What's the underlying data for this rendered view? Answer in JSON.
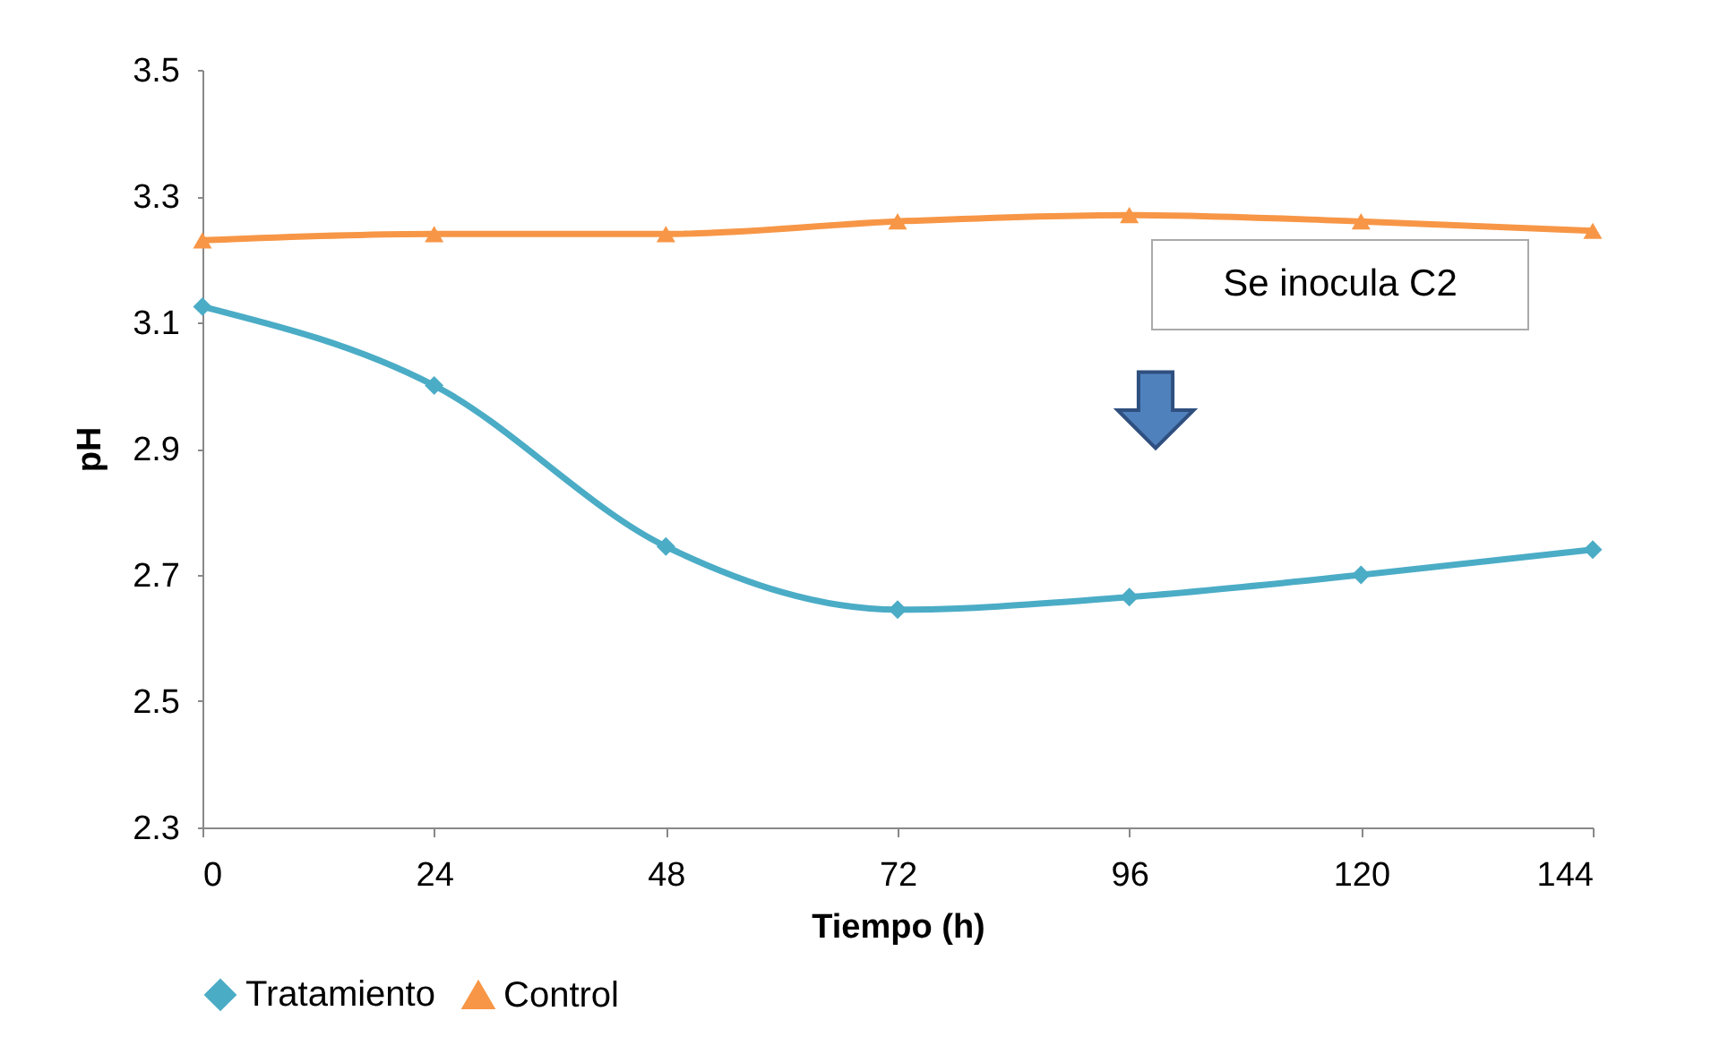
{
  "chart_data": {
    "type": "line",
    "xlabel": "Tiempo (h)",
    "ylabel": "pH",
    "x": [
      0,
      24,
      48,
      72,
      96,
      120,
      144
    ],
    "series": [
      {
        "name": "Tratamiento",
        "color": "#4bacc6",
        "marker": "diamond",
        "values": [
          3.125,
          3.0,
          2.745,
          2.645,
          2.665,
          2.7,
          2.74
        ]
      },
      {
        "name": "Control",
        "color": "#f79646",
        "marker": "triangle",
        "values": [
          3.23,
          3.24,
          3.24,
          3.26,
          3.27,
          3.26,
          3.245
        ]
      }
    ],
    "xlim": [
      0,
      144
    ],
    "xticks": [
      0,
      24,
      48,
      72,
      96,
      120,
      144
    ],
    "ylim": [
      2.3,
      3.5
    ],
    "yticks": [
      2.3,
      2.5,
      2.7,
      2.9,
      3.1,
      3.3,
      3.5
    ],
    "annotations": [
      "Se inocula C2"
    ],
    "grid": false,
    "legend": "bottom",
    "line_style": "solid"
  }
}
